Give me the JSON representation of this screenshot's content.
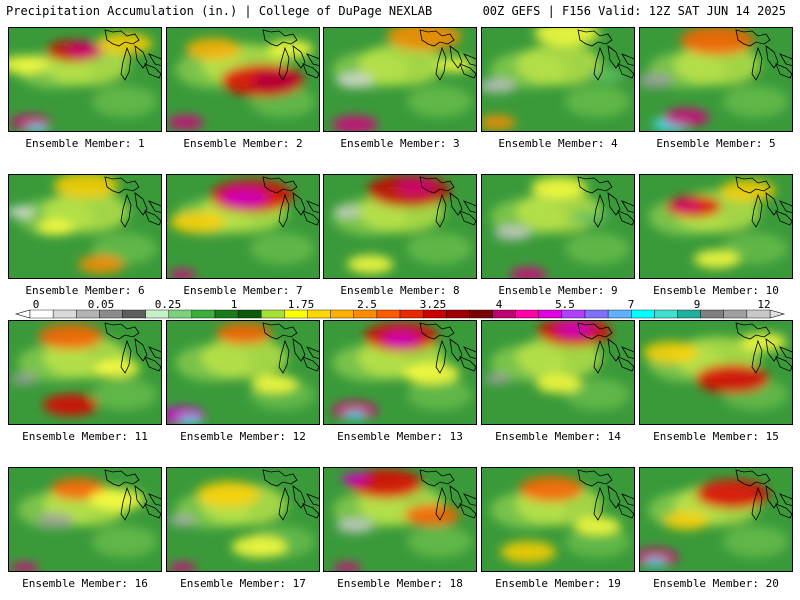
{
  "header": {
    "title_left": "Precipitation Accumulation (in.) | College of DuPage NEXLAB",
    "title_right": "00Z GEFS | F156 Valid: 12Z SAT JUN 14 2025"
  },
  "members": [
    {
      "label": "Ensemble Member: 1",
      "blobs": [
        [
          0.42,
          0.22,
          0.3,
          "#c80000"
        ],
        [
          0.5,
          0.22,
          0.2,
          "#d40080"
        ],
        [
          0.14,
          0.9,
          0.22,
          "#d40080"
        ],
        [
          0.18,
          0.96,
          0.12,
          "#30e0ff"
        ],
        [
          0.75,
          0.15,
          0.3,
          "#ffd000"
        ],
        [
          0.1,
          0.35,
          0.25,
          "#ffff40"
        ]
      ]
    },
    {
      "label": "Ensemble Member: 2",
      "blobs": [
        [
          0.62,
          0.5,
          0.45,
          "#e00000"
        ],
        [
          0.7,
          0.5,
          0.25,
          "#b00040"
        ],
        [
          0.12,
          0.9,
          0.2,
          "#d40080"
        ],
        [
          0.3,
          0.2,
          0.3,
          "#ffb000"
        ],
        [
          0.8,
          0.2,
          0.25,
          "#ffff40"
        ]
      ]
    },
    {
      "label": "Ensemble Member: 3",
      "blobs": [
        [
          0.65,
          0.08,
          0.4,
          "#ff8c00"
        ],
        [
          0.2,
          0.5,
          0.2,
          "#d8d8d8"
        ],
        [
          0.2,
          0.92,
          0.25,
          "#d40080"
        ],
        [
          0.85,
          0.35,
          0.2,
          "#ffff40"
        ]
      ]
    },
    {
      "label": "Ensemble Member: 4",
      "blobs": [
        [
          0.55,
          0.05,
          0.35,
          "#ffff40"
        ],
        [
          0.1,
          0.55,
          0.2,
          "#c0c0c0"
        ],
        [
          0.1,
          0.9,
          0.2,
          "#ff8c00"
        ],
        [
          0.8,
          0.45,
          0.2,
          "#60c060"
        ]
      ]
    },
    {
      "label": "Ensemble Member: 5",
      "blobs": [
        [
          0.5,
          0.12,
          0.4,
          "#ff6000"
        ],
        [
          0.1,
          0.5,
          0.2,
          "#a0a0a0"
        ],
        [
          0.2,
          0.92,
          0.2,
          "#30e0ff"
        ],
        [
          0.3,
          0.85,
          0.25,
          "#d40080"
        ]
      ]
    },
    {
      "label": "Ensemble Member: 6",
      "blobs": [
        [
          0.5,
          0.1,
          0.35,
          "#ffd000"
        ],
        [
          0.08,
          0.35,
          0.15,
          "#e0e0e0"
        ],
        [
          0.6,
          0.85,
          0.25,
          "#ff8c00"
        ],
        [
          0.3,
          0.5,
          0.2,
          "#ffff40"
        ]
      ]
    },
    {
      "label": "Ensemble Member: 7",
      "blobs": [
        [
          0.55,
          0.2,
          0.45,
          "#e00000"
        ],
        [
          0.5,
          0.22,
          0.25,
          "#d000d0"
        ],
        [
          0.2,
          0.45,
          0.3,
          "#ffd000"
        ],
        [
          0.1,
          0.95,
          0.15,
          "#d40080"
        ]
      ]
    },
    {
      "label": "Ensemble Member: 8",
      "blobs": [
        [
          0.55,
          0.15,
          0.45,
          "#c80000"
        ],
        [
          0.6,
          0.12,
          0.2,
          "#d40080"
        ],
        [
          0.15,
          0.35,
          0.15,
          "#d0d0d0"
        ],
        [
          0.3,
          0.85,
          0.25,
          "#ffff40"
        ]
      ]
    },
    {
      "label": "Ensemble Member: 9",
      "blobs": [
        [
          0.5,
          0.12,
          0.3,
          "#ffff40"
        ],
        [
          0.2,
          0.55,
          0.2,
          "#c8c8c8"
        ],
        [
          0.3,
          0.95,
          0.2,
          "#d40080"
        ],
        [
          0.7,
          0.4,
          0.2,
          "#60c060"
        ]
      ]
    },
    {
      "label": "Ensemble Member: 10",
      "blobs": [
        [
          0.35,
          0.3,
          0.3,
          "#e00000"
        ],
        [
          0.3,
          0.3,
          0.15,
          "#d40080"
        ],
        [
          0.7,
          0.15,
          0.3,
          "#ffd000"
        ],
        [
          0.5,
          0.8,
          0.25,
          "#ffff40"
        ]
      ]
    },
    {
      "label": "Ensemble Member: 11",
      "blobs": [
        [
          0.4,
          0.15,
          0.35,
          "#ff6000"
        ],
        [
          0.4,
          0.8,
          0.3,
          "#e00000"
        ],
        [
          0.1,
          0.55,
          0.15,
          "#a0a0a0"
        ],
        [
          0.7,
          0.45,
          0.25,
          "#ffff40"
        ]
      ]
    },
    {
      "label": "Ensemble Member: 12",
      "blobs": [
        [
          0.5,
          0.12,
          0.3,
          "#ff6000"
        ],
        [
          0.1,
          0.9,
          0.25,
          "#d000d0"
        ],
        [
          0.15,
          0.95,
          0.12,
          "#30e0ff"
        ],
        [
          0.7,
          0.6,
          0.25,
          "#ffff40"
        ]
      ]
    },
    {
      "label": "Ensemble Member: 13",
      "blobs": [
        [
          0.5,
          0.15,
          0.4,
          "#e00000"
        ],
        [
          0.5,
          0.18,
          0.2,
          "#d000d0"
        ],
        [
          0.2,
          0.85,
          0.25,
          "#d40080"
        ],
        [
          0.2,
          0.9,
          0.12,
          "#30e0ff"
        ],
        [
          0.7,
          0.5,
          0.3,
          "#ffff40"
        ]
      ]
    },
    {
      "label": "Ensemble Member: 14",
      "blobs": [
        [
          0.6,
          0.1,
          0.4,
          "#e00000"
        ],
        [
          0.6,
          0.08,
          0.2,
          "#d000d0"
        ],
        [
          0.1,
          0.55,
          0.15,
          "#a0a0a0"
        ],
        [
          0.5,
          0.6,
          0.25,
          "#ffff40"
        ]
      ]
    },
    {
      "label": "Ensemble Member: 15",
      "blobs": [
        [
          0.6,
          0.55,
          0.4,
          "#e00000"
        ],
        [
          0.2,
          0.3,
          0.3,
          "#ffd000"
        ],
        [
          0.8,
          0.2,
          0.25,
          "#ffff40"
        ]
      ]
    },
    {
      "label": "Ensemble Member: 16",
      "blobs": [
        [
          0.45,
          0.2,
          0.3,
          "#ff6000"
        ],
        [
          0.3,
          0.5,
          0.2,
          "#a0a0a0"
        ],
        [
          0.1,
          0.95,
          0.15,
          "#d40080"
        ],
        [
          0.7,
          0.3,
          0.3,
          "#ffff40"
        ]
      ]
    },
    {
      "label": "Ensemble Member: 17",
      "blobs": [
        [
          0.4,
          0.25,
          0.35,
          "#ffd000"
        ],
        [
          0.1,
          0.5,
          0.15,
          "#b0b0b0"
        ],
        [
          0.1,
          0.95,
          0.15,
          "#d40080"
        ],
        [
          0.6,
          0.75,
          0.3,
          "#ffff40"
        ]
      ]
    },
    {
      "label": "Ensemble Member: 18",
      "blobs": [
        [
          0.4,
          0.15,
          0.4,
          "#e00000"
        ],
        [
          0.2,
          0.1,
          0.15,
          "#d000d0"
        ],
        [
          0.2,
          0.55,
          0.2,
          "#c8c8c8"
        ],
        [
          0.7,
          0.45,
          0.3,
          "#ff6000"
        ],
        [
          0.15,
          0.95,
          0.15,
          "#d40080"
        ]
      ]
    },
    {
      "label": "Ensemble Member: 19",
      "blobs": [
        [
          0.45,
          0.2,
          0.35,
          "#ff6000"
        ],
        [
          0.3,
          0.8,
          0.3,
          "#ffd000"
        ],
        [
          0.75,
          0.55,
          0.25,
          "#ffff40"
        ]
      ]
    },
    {
      "label": "Ensemble Member: 20",
      "blobs": [
        [
          0.6,
          0.25,
          0.4,
          "#e00000"
        ],
        [
          0.1,
          0.85,
          0.25,
          "#d40080"
        ],
        [
          0.1,
          0.9,
          0.12,
          "#30e0ff"
        ],
        [
          0.3,
          0.5,
          0.25,
          "#ffd000"
        ]
      ]
    }
  ],
  "colorbar": {
    "tick_labels": [
      "0",
      "0.05",
      "0.25",
      "1",
      "1.75",
      "2.5",
      "3.25",
      "4",
      "5.5",
      "7",
      "9",
      "12"
    ],
    "colors": [
      "#ffffff",
      "#d9d9d9",
      "#b3b3b3",
      "#8c8c8c",
      "#5e5e5e",
      "#c6f0c6",
      "#7cd27c",
      "#3cae3c",
      "#1a7a1a",
      "#0c5a0c",
      "#a6e034",
      "#ffff00",
      "#ffd700",
      "#ffb000",
      "#ff8c00",
      "#ff5a00",
      "#e82a00",
      "#cc0000",
      "#a00000",
      "#780000",
      "#c00070",
      "#ff00aa",
      "#e000e0",
      "#b040ff",
      "#8070ff",
      "#60b0ff",
      "#00ffff",
      "#40e0d0",
      "#20b0a0",
      "#808080",
      "#a0a0a0",
      "#c8c8c8"
    ]
  }
}
